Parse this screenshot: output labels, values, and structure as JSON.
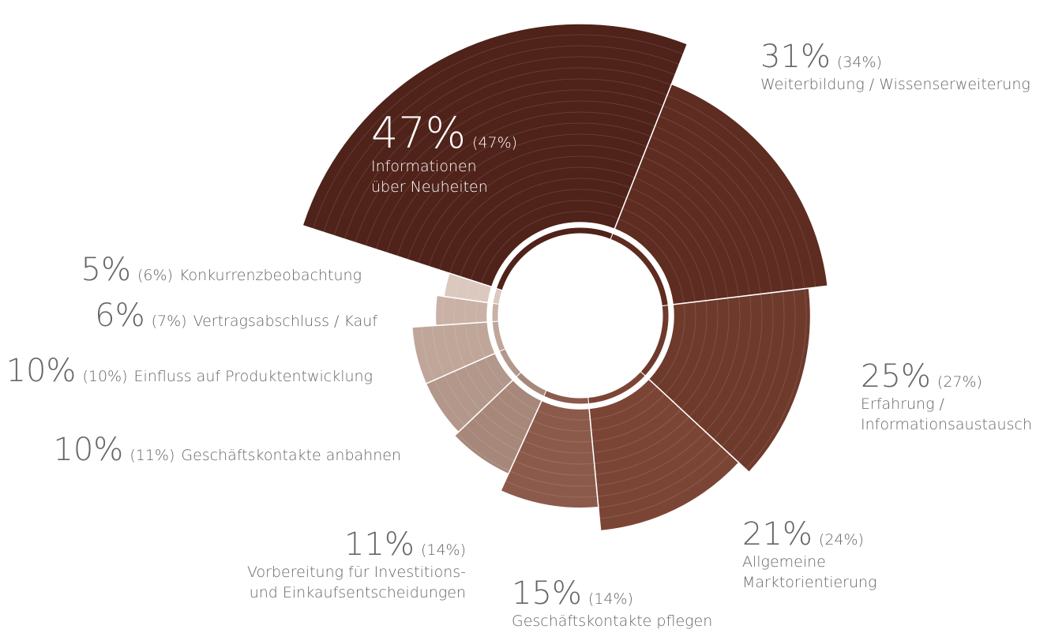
{
  "chart_data": {
    "type": "polar",
    "categories": [
      [
        "Informationen",
        "über Neuheiten"
      ],
      [
        "Weiterbildung / Wissenserweiterung"
      ],
      [
        "Erfahrung /",
        "Informationsaustausch"
      ],
      [
        "Allgemeine",
        "Marktorientierung"
      ],
      [
        "Geschäftskontakte pflegen"
      ],
      [
        "Vorbereitung für Investitions-",
        "und Einkaufsentscheidungen"
      ],
      [
        "Geschäftskontakte anbahnen"
      ],
      [
        "Einfluss auf Produktentwicklung"
      ],
      [
        "Vertragsabschluss / Kauf"
      ],
      [
        "Konkurrenzbeobachtung"
      ]
    ],
    "values": [
      47,
      31,
      25,
      21,
      15,
      11,
      10,
      10,
      6,
      5
    ],
    "value_labels": [
      "47%",
      "31%",
      "25%",
      "21%",
      "15%",
      "11%",
      "10%",
      "10%",
      "6%",
      "5%"
    ],
    "previous_values": [
      47,
      34,
      27,
      24,
      14,
      14,
      11,
      10,
      7,
      6
    ],
    "previous_labels": [
      "(47%)",
      "(34%)",
      "(27%)",
      "(24%)",
      "(14%)",
      "(14%)",
      "(11%)",
      "(10%)",
      "(7%)",
      "(6%)"
    ],
    "colors": [
      "#4f221a",
      "#5e2c20",
      "#6e3a2c",
      "#7b4536",
      "#8c5a4a",
      "#a7877a",
      "#b3978b",
      "#bfa699",
      "#c9b1a5",
      "#dbc8bf"
    ]
  }
}
